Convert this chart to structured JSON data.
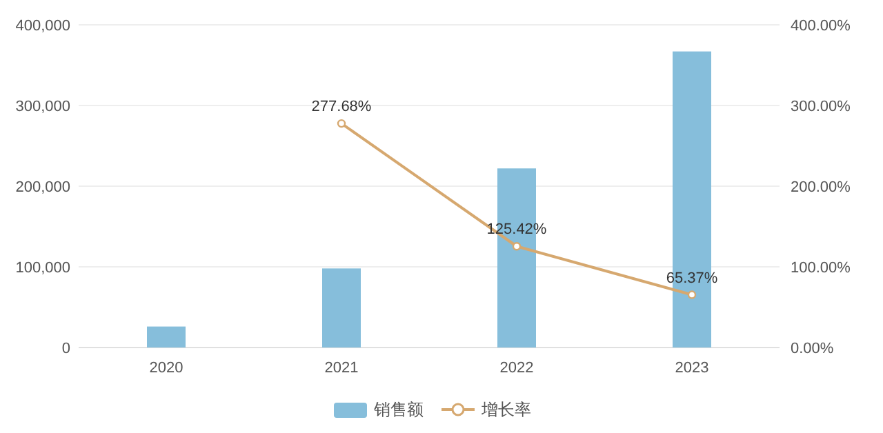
{
  "chart_data": {
    "type": "bar",
    "categories": [
      "2020",
      "2021",
      "2022",
      "2023"
    ],
    "series": [
      {
        "name": "销售额",
        "color": "#86bedb",
        "values": [
          26000,
          98000,
          222000,
          367000
        ]
      },
      {
        "name": "增长率",
        "type": "line",
        "axis": "y2",
        "color": "#d6a86f",
        "marker": "circle",
        "values": [
          null,
          277.68,
          125.42,
          65.37
        ],
        "value_labels": [
          null,
          "277.68%",
          "125.42%",
          "65.37%"
        ]
      }
    ],
    "ylim": [
      0,
      400000
    ],
    "yticks": [
      {
        "value": 0,
        "label": "0"
      },
      {
        "value": 100000,
        "label": "100,000"
      },
      {
        "value": 200000,
        "label": "200,000"
      },
      {
        "value": 300000,
        "label": "300,000"
      },
      {
        "value": 400000,
        "label": "400,000"
      }
    ],
    "y2lim": [
      0,
      400
    ],
    "y2ticks": [
      {
        "value": 0,
        "label": "0.00%"
      },
      {
        "value": 100,
        "label": "100.00%"
      },
      {
        "value": 200,
        "label": "200.00%"
      },
      {
        "value": 300,
        "label": "300.00%"
      },
      {
        "value": 400,
        "label": "400.00%"
      }
    ],
    "grid": "y",
    "legend": "bottom"
  }
}
